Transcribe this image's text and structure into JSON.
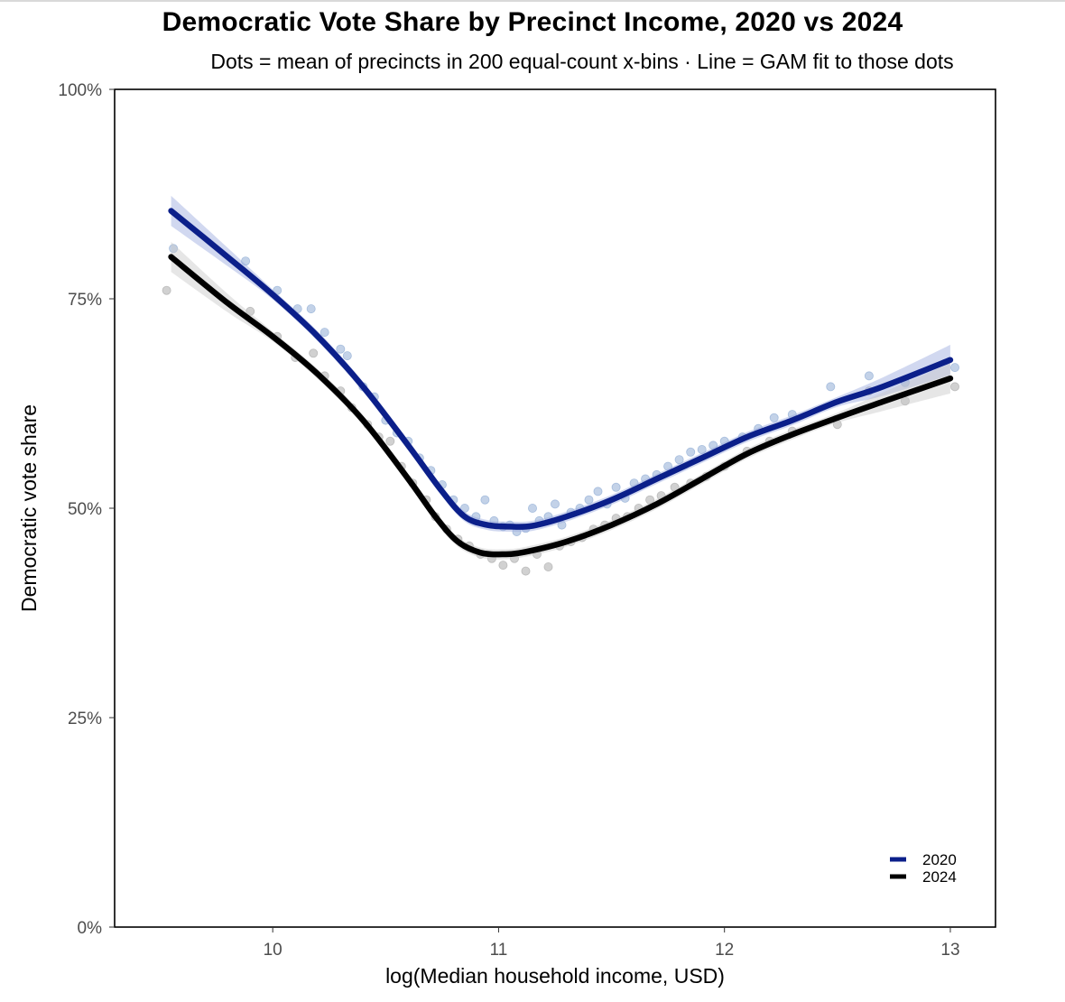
{
  "chart_data": {
    "type": "scatter",
    "title": "Democratic Vote Share by Precinct Income, 2020 vs 2024",
    "subtitle": "Dots = mean of precincts in 200 equal-count x-bins · Line = GAM fit to those dots",
    "xlabel": "log(Median household income, USD)",
    "ylabel": "Democratic vote share",
    "xlim": [
      9.3,
      13.2
    ],
    "ylim": [
      0,
      1
    ],
    "x_ticks": [
      10,
      11,
      12,
      13
    ],
    "x_tick_labels": [
      "10",
      "11",
      "12",
      "13"
    ],
    "y_ticks": [
      0,
      0.25,
      0.5,
      0.75,
      1
    ],
    "y_tick_labels": [
      "0%",
      "25%",
      "50%",
      "75%",
      "100%"
    ],
    "grid": false,
    "legend_position": "bottom-right",
    "series": [
      {
        "name": "2020",
        "color": "#0b1f8a",
        "dot_color": "#7a9ccc",
        "band_color": "#9aa8de",
        "fit_x": [
          9.55,
          9.8,
          10.0,
          10.2,
          10.4,
          10.6,
          10.75,
          10.85,
          10.95,
          11.05,
          11.15,
          11.3,
          11.5,
          11.7,
          11.9,
          12.1,
          12.3,
          12.5,
          12.7,
          13.0
        ],
        "fit_y": [
          0.855,
          0.8,
          0.755,
          0.705,
          0.645,
          0.575,
          0.52,
          0.49,
          0.48,
          0.478,
          0.479,
          0.49,
          0.51,
          0.535,
          0.56,
          0.585,
          0.605,
          0.627,
          0.645,
          0.677
        ],
        "points": [
          [
            9.56,
            0.81
          ],
          [
            9.88,
            0.795
          ],
          [
            10.02,
            0.76
          ],
          [
            10.11,
            0.738
          ],
          [
            10.17,
            0.738
          ],
          [
            10.23,
            0.71
          ],
          [
            10.3,
            0.69
          ],
          [
            10.33,
            0.682
          ],
          [
            10.4,
            0.645
          ],
          [
            10.45,
            0.633
          ],
          [
            10.5,
            0.605
          ],
          [
            10.55,
            0.59
          ],
          [
            10.6,
            0.58
          ],
          [
            10.65,
            0.56
          ],
          [
            10.7,
            0.545
          ],
          [
            10.75,
            0.528
          ],
          [
            10.8,
            0.51
          ],
          [
            10.85,
            0.5
          ],
          [
            10.9,
            0.49
          ],
          [
            10.94,
            0.51
          ],
          [
            10.98,
            0.485
          ],
          [
            11.02,
            0.478
          ],
          [
            11.05,
            0.48
          ],
          [
            11.08,
            0.472
          ],
          [
            11.12,
            0.476
          ],
          [
            11.15,
            0.5
          ],
          [
            11.18,
            0.485
          ],
          [
            11.22,
            0.49
          ],
          [
            11.25,
            0.505
          ],
          [
            11.28,
            0.48
          ],
          [
            11.32,
            0.495
          ],
          [
            11.36,
            0.5
          ],
          [
            11.4,
            0.51
          ],
          [
            11.44,
            0.52
          ],
          [
            11.48,
            0.505
          ],
          [
            11.52,
            0.525
          ],
          [
            11.56,
            0.512
          ],
          [
            11.6,
            0.53
          ],
          [
            11.65,
            0.535
          ],
          [
            11.7,
            0.54
          ],
          [
            11.75,
            0.55
          ],
          [
            11.8,
            0.558
          ],
          [
            11.85,
            0.567
          ],
          [
            11.9,
            0.57
          ],
          [
            11.95,
            0.575
          ],
          [
            12.0,
            0.58
          ],
          [
            12.08,
            0.585
          ],
          [
            12.15,
            0.595
          ],
          [
            12.22,
            0.608
          ],
          [
            12.3,
            0.612
          ],
          [
            12.47,
            0.645
          ],
          [
            12.64,
            0.658
          ],
          [
            12.8,
            0.65
          ],
          [
            13.02,
            0.668
          ]
        ]
      },
      {
        "name": "2024",
        "color": "#000000",
        "dot_color": "#9a9a9a",
        "band_color": "#c8c8c8",
        "fit_x": [
          9.55,
          9.8,
          10.0,
          10.2,
          10.4,
          10.6,
          10.72,
          10.82,
          10.92,
          11.02,
          11.12,
          11.3,
          11.5,
          11.7,
          11.9,
          12.1,
          12.3,
          12.5,
          12.7,
          13.0
        ],
        "fit_y": [
          0.8,
          0.745,
          0.705,
          0.66,
          0.605,
          0.535,
          0.49,
          0.46,
          0.447,
          0.445,
          0.448,
          0.46,
          0.48,
          0.505,
          0.535,
          0.565,
          0.588,
          0.608,
          0.627,
          0.655
        ],
        "points": [
          [
            9.53,
            0.76
          ],
          [
            9.9,
            0.735
          ],
          [
            10.02,
            0.705
          ],
          [
            10.1,
            0.68
          ],
          [
            10.18,
            0.685
          ],
          [
            10.23,
            0.658
          ],
          [
            10.3,
            0.64
          ],
          [
            10.35,
            0.62
          ],
          [
            10.42,
            0.6
          ],
          [
            10.47,
            0.585
          ],
          [
            10.52,
            0.58
          ],
          [
            10.57,
            0.55
          ],
          [
            10.62,
            0.53
          ],
          [
            10.68,
            0.51
          ],
          [
            10.72,
            0.49
          ],
          [
            10.77,
            0.475
          ],
          [
            10.82,
            0.463
          ],
          [
            10.87,
            0.455
          ],
          [
            10.92,
            0.445
          ],
          [
            10.97,
            0.44
          ],
          [
            11.02,
            0.432
          ],
          [
            11.07,
            0.44
          ],
          [
            11.12,
            0.425
          ],
          [
            11.17,
            0.445
          ],
          [
            11.22,
            0.43
          ],
          [
            11.27,
            0.455
          ],
          [
            11.32,
            0.46
          ],
          [
            11.37,
            0.465
          ],
          [
            11.42,
            0.475
          ],
          [
            11.47,
            0.48
          ],
          [
            11.52,
            0.488
          ],
          [
            11.57,
            0.49
          ],
          [
            11.62,
            0.5
          ],
          [
            11.67,
            0.51
          ],
          [
            11.72,
            0.515
          ],
          [
            11.78,
            0.525
          ],
          [
            11.85,
            0.53
          ],
          [
            11.92,
            0.538
          ],
          [
            12.0,
            0.55
          ],
          [
            12.1,
            0.568
          ],
          [
            12.2,
            0.58
          ],
          [
            12.3,
            0.592
          ],
          [
            12.5,
            0.6
          ],
          [
            12.64,
            0.64
          ],
          [
            12.8,
            0.628
          ],
          [
            13.02,
            0.645
          ]
        ]
      }
    ]
  }
}
